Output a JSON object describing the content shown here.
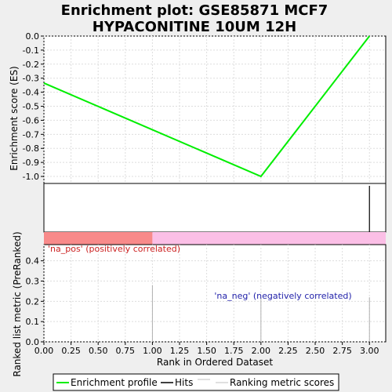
{
  "chart_data": {
    "type": "line",
    "title_lines": [
      "Enrichment plot: GSE85871 MCF7",
      "HYPACONITINE 10UM 12H"
    ],
    "top_panel": {
      "ylabel": "Enrichment score (ES)",
      "ylim": [
        -1.05,
        0.0
      ],
      "yticks": [
        0.0,
        -0.1,
        -0.2,
        -0.3,
        -0.4,
        -0.5,
        -0.6,
        -0.7,
        -0.8,
        -0.9,
        -1.0
      ],
      "ytick_labels": [
        "0.0",
        "-0.1",
        "-0.2",
        "-0.3",
        "-0.4",
        "-0.5",
        "-0.6",
        "-0.7",
        "-0.8",
        "-0.9",
        "-1.0"
      ],
      "series": [
        {
          "name": "Enrichment profile",
          "color": "#00ee00",
          "x": [
            0,
            2,
            3
          ],
          "y": [
            -0.335,
            -1.0,
            0.0
          ]
        }
      ]
    },
    "hits_panel": {
      "hits_x": [
        3
      ]
    },
    "band": {
      "split_x": 1,
      "pos_color": "#f88a8a",
      "neg_color": "#fbbfe6"
    },
    "bottom_panel": {
      "ylabel": "Ranked list metric (PreRanked)",
      "ylim": [
        0,
        0.48
      ],
      "yticks": [
        0,
        0.1,
        0.2,
        0.3,
        0.4
      ],
      "ytick_labels": [
        "0.0",
        "0.1",
        "0.2",
        "0.3",
        "0.4"
      ],
      "bars": [
        {
          "x": 1,
          "value": 0.28
        },
        {
          "x": 2,
          "value": 0.22
        },
        {
          "x": 3,
          "value": 0.22
        }
      ],
      "pos_label": "'na_pos' (positively correlated)",
      "neg_label": "'na_neg' (negatively correlated)",
      "pos_label_color": "#cc2222",
      "neg_label_color": "#2222aa"
    },
    "xlabel": "Rank in Ordered Dataset",
    "xlim": [
      0,
      3.15
    ],
    "xticks": [
      0.0,
      0.25,
      0.5,
      0.75,
      1.0,
      1.25,
      1.5,
      1.75,
      2.0,
      2.25,
      2.5,
      2.75,
      3.0
    ],
    "xtick_labels": [
      "0.00",
      "0.25",
      "0.50",
      "0.75",
      "1.00",
      "1.25",
      "1.50",
      "1.75",
      "2.00",
      "2.25",
      "2.50",
      "2.75",
      "3.00"
    ],
    "legend": {
      "placement": "bottom",
      "items": [
        {
          "label": "Enrichment profile",
          "color": "#00ee00"
        },
        {
          "label": "Hits",
          "color": "#000000"
        },
        {
          "label": "Ranking metric scores",
          "color": "#c0c0c0"
        }
      ]
    }
  }
}
